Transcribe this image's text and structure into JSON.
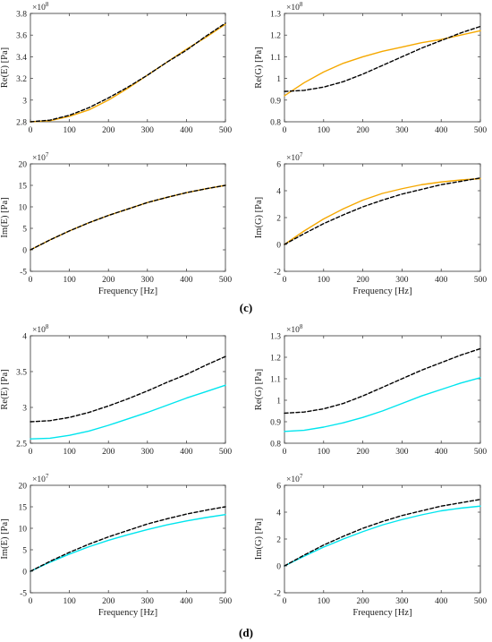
{
  "figure_labels": {
    "c": "(c)",
    "d": "(d)"
  },
  "colors": {
    "reference": "#000000",
    "orange": "#f5a800",
    "cyan": "#00e5ee"
  },
  "chart_data": [
    {
      "type": "line",
      "panel": "c",
      "ylabel": "Re(E) [Pa]",
      "xlabel": "",
      "exponent_base": "×10",
      "exponent_power": "8",
      "xlim": [
        0,
        500
      ],
      "ylim": [
        2.8,
        3.8
      ],
      "xticks": [
        "0",
        "100",
        "200",
        "300",
        "400",
        "500"
      ],
      "yticks": [
        "2.8",
        "3",
        "3.2",
        "3.4",
        "3.6",
        "3.8"
      ],
      "series": [
        {
          "style": "dashed",
          "color": "#000000",
          "x": [
            0,
            50,
            100,
            150,
            200,
            250,
            300,
            350,
            400,
            450,
            500
          ],
          "y": [
            2.8,
            2.815,
            2.86,
            2.93,
            3.02,
            3.12,
            3.23,
            3.35,
            3.46,
            3.59,
            3.71
          ]
        },
        {
          "style": "solid",
          "color": "#f5a800",
          "x": [
            0,
            50,
            100,
            150,
            200,
            250,
            300,
            350,
            400,
            450,
            500
          ],
          "y": [
            2.8,
            2.81,
            2.85,
            2.91,
            3.0,
            3.11,
            3.23,
            3.35,
            3.47,
            3.58,
            3.7
          ]
        }
      ]
    },
    {
      "type": "line",
      "panel": "c",
      "ylabel": "Re(G) [Pa]",
      "xlabel": "",
      "exponent_base": "×10",
      "exponent_power": "8",
      "xlim": [
        0,
        500
      ],
      "ylim": [
        0.8,
        1.3
      ],
      "xticks": [
        "0",
        "100",
        "200",
        "300",
        "400",
        "500"
      ],
      "yticks": [
        "0.8",
        "0.9",
        "1",
        "1.1",
        "1.2",
        "1.3"
      ],
      "series": [
        {
          "style": "dashed",
          "color": "#000000",
          "x": [
            0,
            50,
            100,
            150,
            200,
            250,
            300,
            350,
            400,
            450,
            500
          ],
          "y": [
            0.94,
            0.945,
            0.96,
            0.985,
            1.02,
            1.06,
            1.1,
            1.14,
            1.175,
            1.21,
            1.24
          ]
        },
        {
          "style": "solid",
          "color": "#f5a800",
          "x": [
            0,
            50,
            100,
            150,
            200,
            250,
            300,
            350,
            400,
            450,
            500
          ],
          "y": [
            0.92,
            0.98,
            1.03,
            1.07,
            1.1,
            1.125,
            1.145,
            1.165,
            1.18,
            1.2,
            1.22
          ]
        }
      ]
    },
    {
      "type": "line",
      "panel": "c",
      "ylabel": "Im(E) [Pa]",
      "xlabel": "Frequency [Hz]",
      "exponent_base": "×10",
      "exponent_power": "7",
      "xlim": [
        0,
        500
      ],
      "ylim": [
        -5,
        20
      ],
      "xticks": [
        "0",
        "100",
        "200",
        "300",
        "400",
        "500"
      ],
      "yticks": [
        "-5",
        "0",
        "5",
        "10",
        "15",
        "20"
      ],
      "series": [
        {
          "style": "dashed",
          "color": "#000000",
          "x": [
            0,
            50,
            100,
            150,
            200,
            250,
            300,
            350,
            400,
            450,
            500
          ],
          "y": [
            0,
            2.3,
            4.4,
            6.3,
            8.0,
            9.5,
            11.0,
            12.2,
            13.3,
            14.2,
            15.0
          ]
        },
        {
          "style": "solid",
          "color": "#f5a800",
          "x": [
            0,
            50,
            100,
            150,
            200,
            250,
            300,
            350,
            400,
            450,
            500
          ],
          "y": [
            0,
            2.3,
            4.4,
            6.3,
            8.0,
            9.5,
            11.0,
            12.2,
            13.3,
            14.2,
            15.0
          ]
        }
      ]
    },
    {
      "type": "line",
      "panel": "c",
      "ylabel": "Im(G) [Pa]",
      "xlabel": "Frequency [Hz]",
      "exponent_base": "×10",
      "exponent_power": "7",
      "xlim": [
        0,
        500
      ],
      "ylim": [
        -2,
        6
      ],
      "xticks": [
        "0",
        "100",
        "200",
        "300",
        "400",
        "500"
      ],
      "yticks": [
        "-2",
        "0",
        "2",
        "4",
        "6"
      ],
      "series": [
        {
          "style": "dashed",
          "color": "#000000",
          "x": [
            0,
            50,
            100,
            150,
            200,
            250,
            300,
            350,
            400,
            450,
            500
          ],
          "y": [
            0,
            0.8,
            1.55,
            2.2,
            2.8,
            3.3,
            3.75,
            4.1,
            4.45,
            4.7,
            4.95
          ]
        },
        {
          "style": "solid",
          "color": "#f5a800",
          "x": [
            0,
            50,
            100,
            150,
            200,
            250,
            300,
            350,
            400,
            450,
            500
          ],
          "y": [
            0,
            1.0,
            1.9,
            2.65,
            3.3,
            3.8,
            4.15,
            4.45,
            4.65,
            4.8,
            4.9
          ]
        }
      ]
    },
    {
      "type": "line",
      "panel": "d",
      "ylabel": "Re(E) [Pa]",
      "xlabel": "",
      "exponent_base": "×10",
      "exponent_power": "8",
      "xlim": [
        0,
        500
      ],
      "ylim": [
        2.5,
        4
      ],
      "xticks": [
        "0",
        "100",
        "200",
        "300",
        "400",
        "500"
      ],
      "yticks": [
        "2.5",
        "3",
        "3.5",
        "4"
      ],
      "series": [
        {
          "style": "dashed",
          "color": "#000000",
          "x": [
            0,
            50,
            100,
            150,
            200,
            250,
            300,
            350,
            400,
            450,
            500
          ],
          "y": [
            2.8,
            2.815,
            2.86,
            2.93,
            3.02,
            3.12,
            3.23,
            3.35,
            3.46,
            3.59,
            3.71
          ]
        },
        {
          "style": "solid",
          "color": "#00e5ee",
          "x": [
            0,
            50,
            100,
            150,
            200,
            250,
            300,
            350,
            400,
            450,
            500
          ],
          "y": [
            2.56,
            2.57,
            2.61,
            2.67,
            2.75,
            2.84,
            2.93,
            3.03,
            3.13,
            3.22,
            3.31
          ]
        }
      ]
    },
    {
      "type": "line",
      "panel": "d",
      "ylabel": "Re(G) [Pa]",
      "xlabel": "",
      "exponent_base": "×10",
      "exponent_power": "8",
      "xlim": [
        0,
        500
      ],
      "ylim": [
        0.8,
        1.3
      ],
      "xticks": [
        "0",
        "100",
        "200",
        "300",
        "400",
        "500"
      ],
      "yticks": [
        "0.8",
        "0.9",
        "1",
        "1.1",
        "1.2",
        "1.3"
      ],
      "series": [
        {
          "style": "dashed",
          "color": "#000000",
          "x": [
            0,
            50,
            100,
            150,
            200,
            250,
            300,
            350,
            400,
            450,
            500
          ],
          "y": [
            0.94,
            0.945,
            0.96,
            0.985,
            1.02,
            1.06,
            1.1,
            1.14,
            1.175,
            1.21,
            1.24
          ]
        },
        {
          "style": "solid",
          "color": "#00e5ee",
          "x": [
            0,
            50,
            100,
            150,
            200,
            250,
            300,
            350,
            400,
            450,
            500
          ],
          "y": [
            0.855,
            0.86,
            0.875,
            0.895,
            0.92,
            0.95,
            0.985,
            1.02,
            1.05,
            1.08,
            1.105
          ]
        }
      ]
    },
    {
      "type": "line",
      "panel": "d",
      "ylabel": "Im(E) [Pa]",
      "xlabel": "Frequency [Hz]",
      "exponent_base": "×10",
      "exponent_power": "7",
      "xlim": [
        0,
        500
      ],
      "ylim": [
        -5,
        20
      ],
      "xticks": [
        "0",
        "100",
        "200",
        "300",
        "400",
        "500"
      ],
      "yticks": [
        "-5",
        "0",
        "5",
        "10",
        "15",
        "20"
      ],
      "series": [
        {
          "style": "dashed",
          "color": "#000000",
          "x": [
            0,
            50,
            100,
            150,
            200,
            250,
            300,
            350,
            400,
            450,
            500
          ],
          "y": [
            0,
            2.3,
            4.4,
            6.3,
            8.0,
            9.5,
            11.0,
            12.2,
            13.3,
            14.2,
            15.0
          ]
        },
        {
          "style": "solid",
          "color": "#00e5ee",
          "x": [
            0,
            50,
            100,
            150,
            200,
            250,
            300,
            350,
            400,
            450,
            500
          ],
          "y": [
            0,
            2.1,
            4.0,
            5.7,
            7.2,
            8.5,
            9.7,
            10.8,
            11.7,
            12.5,
            13.2
          ]
        }
      ]
    },
    {
      "type": "line",
      "panel": "d",
      "ylabel": "Im(G) [Pa]",
      "xlabel": "Frequency [Hz]",
      "exponent_base": "×10",
      "exponent_power": "7",
      "xlim": [
        0,
        500
      ],
      "ylim": [
        -2,
        6
      ],
      "xticks": [
        "0",
        "100",
        "200",
        "300",
        "400",
        "500"
      ],
      "yticks": [
        "-2",
        "0",
        "2",
        "4",
        "6"
      ],
      "series": [
        {
          "style": "dashed",
          "color": "#000000",
          "x": [
            0,
            50,
            100,
            150,
            200,
            250,
            300,
            350,
            400,
            450,
            500
          ],
          "y": [
            0,
            0.8,
            1.55,
            2.2,
            2.8,
            3.3,
            3.75,
            4.1,
            4.45,
            4.7,
            4.95
          ]
        },
        {
          "style": "solid",
          "color": "#00e5ee",
          "x": [
            0,
            50,
            100,
            150,
            200,
            250,
            300,
            350,
            400,
            450,
            500
          ],
          "y": [
            0,
            0.72,
            1.4,
            2.0,
            2.55,
            3.05,
            3.45,
            3.8,
            4.1,
            4.3,
            4.45
          ]
        }
      ]
    }
  ]
}
